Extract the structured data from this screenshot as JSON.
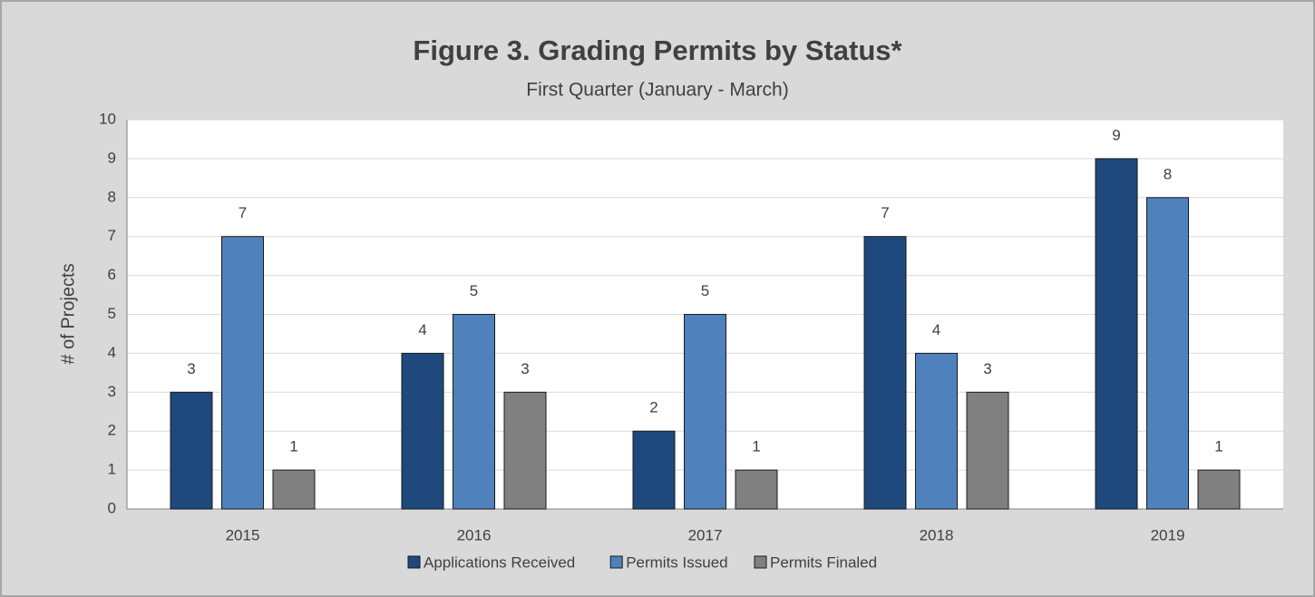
{
  "chart_data": {
    "type": "bar",
    "title": "Figure 3. Grading Permits by Status*",
    "subtitle": "First Quarter (January - March)",
    "ylabel": "# of Projects",
    "categories": [
      "2015",
      "2016",
      "2017",
      "2018",
      "2019"
    ],
    "series": [
      {
        "name": "Applications Received",
        "color": "#1f497d",
        "values": [
          3,
          4,
          2,
          7,
          9
        ]
      },
      {
        "name": "Permits Issued",
        "color": "#4f81bd",
        "values": [
          7,
          5,
          5,
          4,
          8
        ]
      },
      {
        "name": "Permits Finaled",
        "color": "#808080",
        "values": [
          1,
          3,
          1,
          3,
          1
        ]
      }
    ],
    "ylim": [
      0,
      10
    ],
    "yticks": [
      0,
      1,
      2,
      3,
      4,
      5,
      6,
      7,
      8,
      9,
      10
    ],
    "grid": true,
    "legend": "bottom"
  }
}
